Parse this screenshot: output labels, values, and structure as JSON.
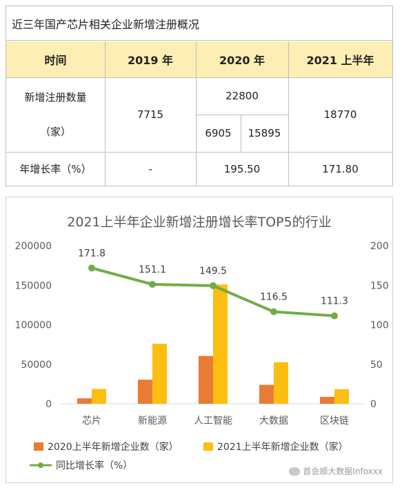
{
  "table": {
    "title": "近三年国产芯片相关企业新增注册概况",
    "headers": [
      "时间",
      "2019 年",
      "2020 年",
      "2021 上半年"
    ],
    "rows": {
      "registrations": {
        "label_line1": "新增注册数量",
        "label_line2": "（家）",
        "y2019": "7715",
        "y2020_total": "22800",
        "y2020_h1": "6905",
        "y2020_h2": "15895",
        "y2021h1": "18770"
      },
      "growth": {
        "label": "年增长率（%）",
        "y2019": "-",
        "y2020": "195.50",
        "y2021h1": "171.80"
      }
    }
  },
  "chart_data": {
    "type": "bar",
    "title": "2021上半年企业新增注册增长率TOP5的行业",
    "categories": [
      "芯片",
      "新能源",
      "人工智能",
      "大数据",
      "区块链"
    ],
    "series": [
      {
        "name": "2020上半年新增企业数（家）",
        "type": "bar",
        "color": "#e97b35",
        "values": [
          6905,
          30500,
          60500,
          24000,
          8800
        ]
      },
      {
        "name": "2021上半年新增企业数（家）",
        "type": "bar",
        "color": "#fcbe11",
        "values": [
          18770,
          76000,
          151000,
          52500,
          18500
        ]
      },
      {
        "name": "同比增长率（%）",
        "type": "line",
        "axis": "right",
        "color": "#71ac47",
        "values": [
          171.8,
          151.1,
          149.5,
          116.5,
          111.3
        ]
      }
    ],
    "line_labels": [
      "171.8",
      "151.1",
      "149.5",
      "116.5",
      "111.3"
    ],
    "ylim_left": [
      0,
      200000
    ],
    "ylim_right": [
      0,
      200
    ],
    "left_ticks": [
      "0",
      "50000",
      "100000",
      "150000",
      "200000"
    ],
    "right_ticks": [
      "0",
      "50",
      "100",
      "150",
      "200"
    ],
    "legend_position": "bottom",
    "grid": false
  },
  "watermark": "首会顺大数据Infoxxx"
}
